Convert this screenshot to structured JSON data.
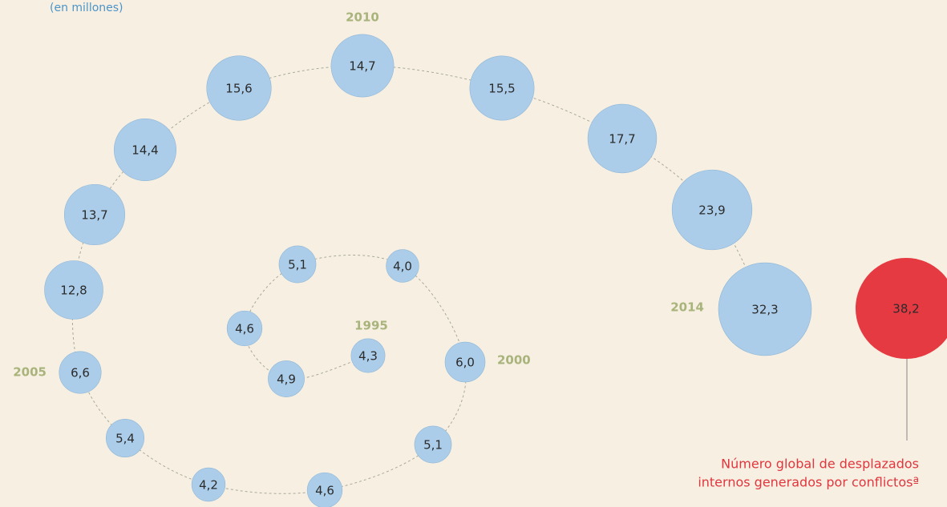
{
  "chart_data": {
    "type": "bubble",
    "subtitle": "(en millones)",
    "categories": [
      "1995",
      null,
      null,
      null,
      null,
      "2000",
      null,
      null,
      null,
      null,
      "2005",
      null,
      null,
      null,
      null,
      "2010",
      null,
      null,
      null,
      "2014",
      null
    ],
    "series": [
      {
        "values": [
          4.3,
          4.9,
          4.6,
          5.1,
          4.0,
          6.0,
          5.1,
          4.6,
          4.2,
          5.4,
          6.6,
          12.8,
          13.7,
          14.4,
          15.6,
          14.7,
          15.5,
          17.7,
          23.9,
          32.3,
          38.2
        ],
        "value_labels": [
          "4,3",
          "4,9",
          "4,6",
          "5,1",
          "4,0",
          "6,0",
          "5,1",
          "4,6",
          "4,2",
          "5,4",
          "6,6",
          "12,8",
          "13,7",
          "14,4",
          "15,6",
          "14,7",
          "15,5",
          "17,7",
          "23,9",
          "32,3",
          "38,2"
        ],
        "colors": [
          "#abcde9",
          "#abcde9",
          "#abcde9",
          "#abcde9",
          "#abcde9",
          "#abcde9",
          "#abcde9",
          "#abcde9",
          "#abcde9",
          "#abcde9",
          "#abcde9",
          "#abcde9",
          "#abcde9",
          "#abcde9",
          "#abcde9",
          "#abcde9",
          "#abcde9",
          "#abcde9",
          "#abcde9",
          "#abcde9",
          "#e63a42"
        ]
      }
    ],
    "annotation": [
      "Número global de desplazados",
      "internos generados por conflictosª"
    ]
  }
}
